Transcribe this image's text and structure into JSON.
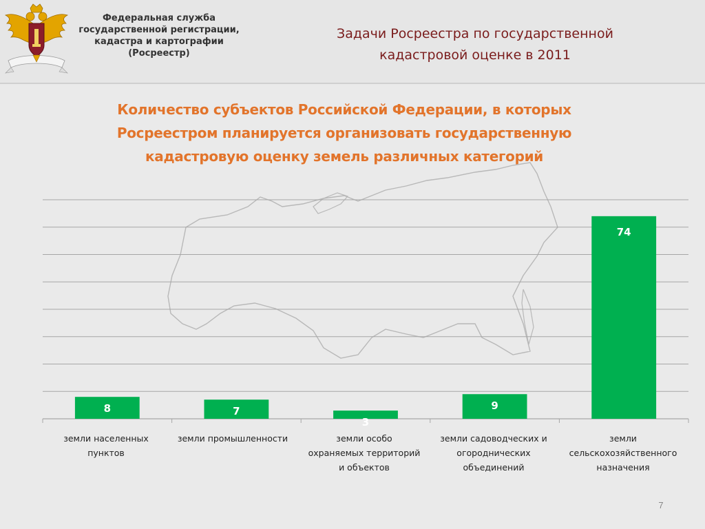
{
  "header": {
    "org_lines": [
      "Федеральная служба",
      "государственной регистрации,",
      "кадастра и картографии",
      "(Росреестр)"
    ],
    "title_lines": [
      "Задачи Росреестра по государственной",
      "кадастровой оценке в 2011"
    ]
  },
  "chart_data": {
    "type": "bar",
    "title_lines": [
      "Количество субъектов Российской Федерации, в которых",
      "Росреестром планируется организовать государственную",
      "кадастровую оценку земель различных категорий"
    ],
    "categories": [
      [
        "земли населенных",
        "пунктов"
      ],
      [
        "земли промышленности"
      ],
      [
        "земли особо",
        "охраняемых территорий",
        "и объектов"
      ],
      [
        "земли садоводческих и",
        "огороднических",
        "объединений"
      ],
      [
        "земли",
        "сельскохозяйственного",
        "назначения"
      ]
    ],
    "values": [
      8,
      7,
      3,
      9,
      74
    ],
    "ylim": [
      0,
      80
    ],
    "grid": true,
    "bar_color": "#00b050",
    "data_labels": true
  },
  "page_number": "7",
  "colors": {
    "slide_title": "#7a1c1c",
    "chart_title": "#e2742b",
    "bar": "#00b050",
    "grid": "#a6a6a6"
  }
}
